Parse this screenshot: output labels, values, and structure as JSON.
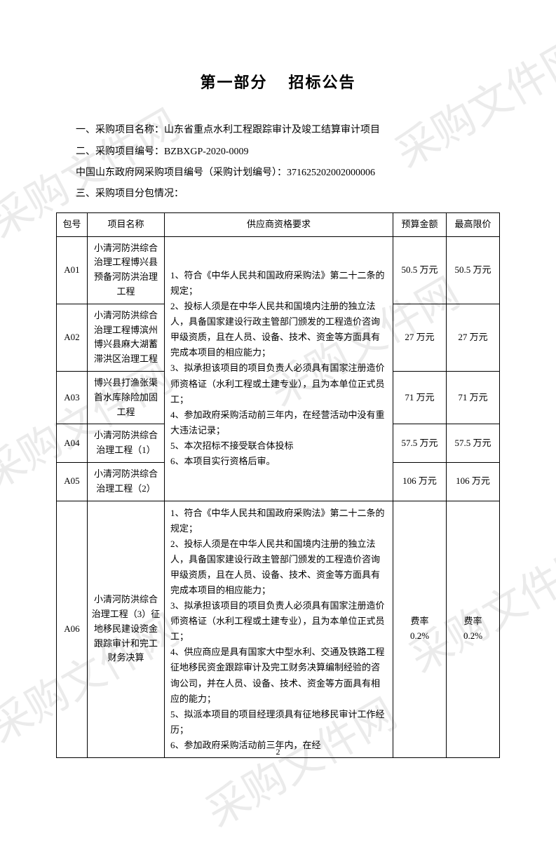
{
  "watermark_text": "采购文件网",
  "title_part1": "第一部分",
  "title_part2": "招标公告",
  "intro": {
    "line1": "一、采购项目名称：山东省重点水利工程跟踪审计及竣工结算审计项目",
    "line2": "二、采购项目编号：BZBXGP-2020-0009",
    "line3": "中国山东政府网采购项目编号（采购计划编号）：371625202002000006",
    "line4": "三、采购项目分包情况："
  },
  "table": {
    "headers": {
      "pkg": "包号",
      "name": "项目名称",
      "req": "供应商资格要求",
      "budget": "预算金额",
      "max": "最高限价"
    },
    "requirements_group1": "1、符合《中华人民共和国政府采购法》第二十二条的规定；\n2、投标人须是在中华人民共和国境内注册的独立法人，具备国家建设行政主管部门颁发的工程造价咨询甲级资质，且在人员、设备、技术、资金等方面具有完成本项目的相应能力；\n3、拟承担该项目的项目负责人必须具有国家注册造价师资格证（水利工程或土建专业），且为本单位正式员工；\n4、参加政府采购活动前三年内，在经营活动中没有重大违法记录；\n5、本次招标不接受联合体投标\n6、本项目实行资格后审。",
    "requirements_group2": "1、符合《中华人民共和国政府采购法》第二十二条的规定；\n2、投标人须是在中华人民共和国境内注册的独立法人，具备国家建设行政主管部门颁发的工程造价咨询甲级资质，且在人员、设备、技术、资金等方面具有完成本项目的相应能力；\n3、拟承担该项目的项目负责人必须具有国家注册造价师资格证（水利工程或土建专业），且为本单位正式员工；\n4、供应商应是具有国家大中型水利、交通及铁路工程征地移民资金跟踪审计及完工财务决算编制经验的咨询公司，并在人员、设备、技术、资金等方面具有相应的能力；\n5、拟派本项目的项目经理须具有征地移民审计工作经历；\n6、参加政府采购活动前三年内，在经",
    "rows": [
      {
        "pkg": "A01",
        "name": "小清河防洪综合治理工程博兴县预备河防洪治理工程",
        "budget": "50.5 万元",
        "max": "50.5 万元"
      },
      {
        "pkg": "A02",
        "name": "小清河防洪综合治理工程博滨州博兴县麻大湖蓄滞洪区治理工程",
        "budget": "27 万元",
        "max": "27 万元"
      },
      {
        "pkg": "A03",
        "name": "博兴县打渔张渠首水库除险加固工程",
        "budget": "71 万元",
        "max": "71 万元"
      },
      {
        "pkg": "A04",
        "name": "小清河防洪综合治理工程（1）",
        "budget": "57.5 万元",
        "max": "57.5 万元"
      },
      {
        "pkg": "A05",
        "name": "小清河防洪综合治理工程（2）",
        "budget": "106 万元",
        "max": "106 万元"
      },
      {
        "pkg": "A06",
        "name": "小清河防洪综合治理工程（3）征地移民建设资金跟踪审计和完工财务决算",
        "budget": "费率\n0.2%",
        "max": "费率\n0.2%"
      }
    ]
  },
  "page_number": "2"
}
